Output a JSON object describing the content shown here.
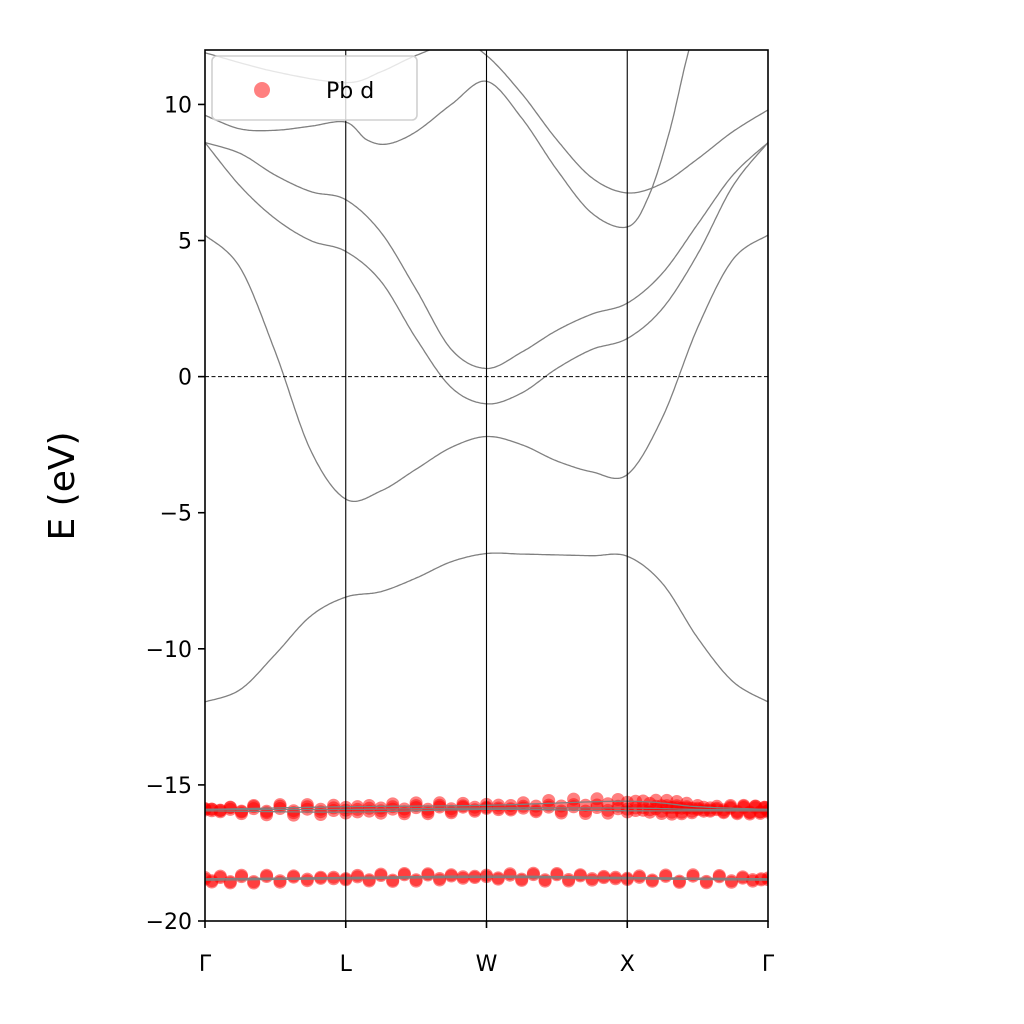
{
  "chart_data": {
    "type": "line",
    "title": "",
    "xlabel": "",
    "ylabel": "E (eV)",
    "ylim": [
      -20,
      12
    ],
    "xlim": [
      0,
      4
    ],
    "yticks": [
      10,
      5,
      0,
      -5,
      -10,
      -15,
      -20
    ],
    "ytick_labels": [
      "10",
      "5",
      "0",
      "−5",
      "−10",
      "−15",
      "−20"
    ],
    "kpoints": [
      {
        "label": "Γ",
        "k": 0
      },
      {
        "label": "L",
        "k": 1
      },
      {
        "label": "W",
        "k": 2
      },
      {
        "label": "X",
        "k": 3
      },
      {
        "label": "Γ",
        "k": 4
      }
    ],
    "fermi_level": 0,
    "band_color": "#808080",
    "projection_color": "#ff0000",
    "legend": {
      "label": "Pb d",
      "marker_color": "#ff8080",
      "placement": "upper-left"
    },
    "bands": [
      {
        "name": "band-1",
        "k": [
          0,
          0.25,
          0.5,
          0.75,
          1,
          1.25,
          1.5,
          1.75,
          2,
          2.25,
          2.5,
          2.75,
          3,
          3.25,
          3.5,
          3.75,
          4
        ],
        "E": [
          -11.95,
          -11.5,
          -10.2,
          -8.8,
          -8.1,
          -7.9,
          -7.4,
          -6.8,
          -6.5,
          -6.52,
          -6.55,
          -6.58,
          -6.6,
          -7.6,
          -9.6,
          -11.2,
          -11.95
        ]
      },
      {
        "name": "band-2",
        "k": [
          0,
          0.25,
          0.5,
          0.75,
          1,
          1.25,
          1.5,
          1.75,
          2,
          2.25,
          2.5,
          2.75,
          3,
          3.25,
          3.5,
          3.75,
          4
        ],
        "E": [
          5.2,
          4.0,
          0.9,
          -2.7,
          -4.5,
          -4.2,
          -3.4,
          -2.6,
          -2.2,
          -2.5,
          -3.1,
          -3.5,
          -3.6,
          -1.5,
          1.8,
          4.3,
          5.2
        ]
      },
      {
        "name": "band-3",
        "k": [
          0,
          0.25,
          0.5,
          0.75,
          1,
          1.25,
          1.5,
          1.75,
          2,
          2.25,
          2.5,
          2.75,
          3,
          3.25,
          3.5,
          3.75,
          4
        ],
        "E": [
          8.6,
          7.0,
          5.8,
          5.0,
          4.6,
          3.5,
          1.4,
          -0.4,
          -1.0,
          -0.6,
          0.3,
          1.0,
          1.4,
          2.5,
          4.5,
          7.0,
          8.6
        ]
      },
      {
        "name": "band-4",
        "k": [
          0,
          0.25,
          0.5,
          0.75,
          1,
          1.25,
          1.5,
          1.75,
          2,
          2.25,
          2.5,
          2.75,
          3,
          3.25,
          3.5,
          3.75,
          4
        ],
        "E": [
          8.6,
          8.2,
          7.4,
          6.8,
          6.5,
          5.3,
          3.2,
          1.0,
          0.3,
          0.9,
          1.7,
          2.3,
          2.7,
          3.8,
          5.6,
          7.4,
          8.6
        ]
      },
      {
        "name": "band-5",
        "k": [
          0,
          0.25,
          0.5,
          0.75,
          1,
          1.15,
          1.3,
          1.5,
          1.75,
          2,
          2.25,
          2.5,
          2.75,
          3,
          3.15,
          3.3,
          3.45,
          3.6
        ],
        "E": [
          9.6,
          9.1,
          9.05,
          9.2,
          9.35,
          8.7,
          8.55,
          9.0,
          10.0,
          10.85,
          9.5,
          7.6,
          6.0,
          5.5,
          6.6,
          9.0,
          12.2,
          14.0
        ]
      },
      {
        "name": "band-6",
        "k": [
          0,
          0.5,
          1,
          1.25,
          1.5,
          1.8,
          2,
          2.25,
          2.5,
          2.75,
          3,
          3.25,
          3.5,
          3.75,
          4
        ],
        "E": [
          11.9,
          11.2,
          10.8,
          11.2,
          11.8,
          12.3,
          11.8,
          10.4,
          8.7,
          7.3,
          6.75,
          7.1,
          8.0,
          9.0,
          9.8
        ]
      },
      {
        "name": "band-pb-d-1",
        "k": [
          0,
          1,
          2,
          3,
          3.5,
          4
        ],
        "E": [
          -15.9,
          -15.8,
          -15.75,
          -15.6,
          -15.8,
          -15.9
        ],
        "pb_d": 1
      },
      {
        "name": "band-pb-d-2",
        "k": [
          0,
          1,
          2,
          3,
          3.5,
          4
        ],
        "E": [
          -15.9,
          -15.9,
          -15.85,
          -15.85,
          -15.9,
          -15.9
        ],
        "pb_d": 1
      },
      {
        "name": "band-pb-d-3",
        "k": [
          0,
          1,
          2,
          3,
          3.5,
          4
        ],
        "E": [
          -15.95,
          -16.0,
          -15.9,
          -15.95,
          -15.95,
          -15.95
        ],
        "pb_d": 1
      },
      {
        "name": "band-pb-d-4",
        "k": [
          0,
          1,
          2,
          3,
          4
        ],
        "E": [
          -18.5,
          -18.45,
          -18.4,
          -18.45,
          -18.5
        ],
        "pb_d": 1
      },
      {
        "name": "band-pb-d-5",
        "k": [
          0,
          1,
          2,
          3,
          4
        ],
        "E": [
          -18.45,
          -18.4,
          -18.35,
          -18.4,
          -18.45
        ],
        "pb_d": 1
      }
    ]
  }
}
